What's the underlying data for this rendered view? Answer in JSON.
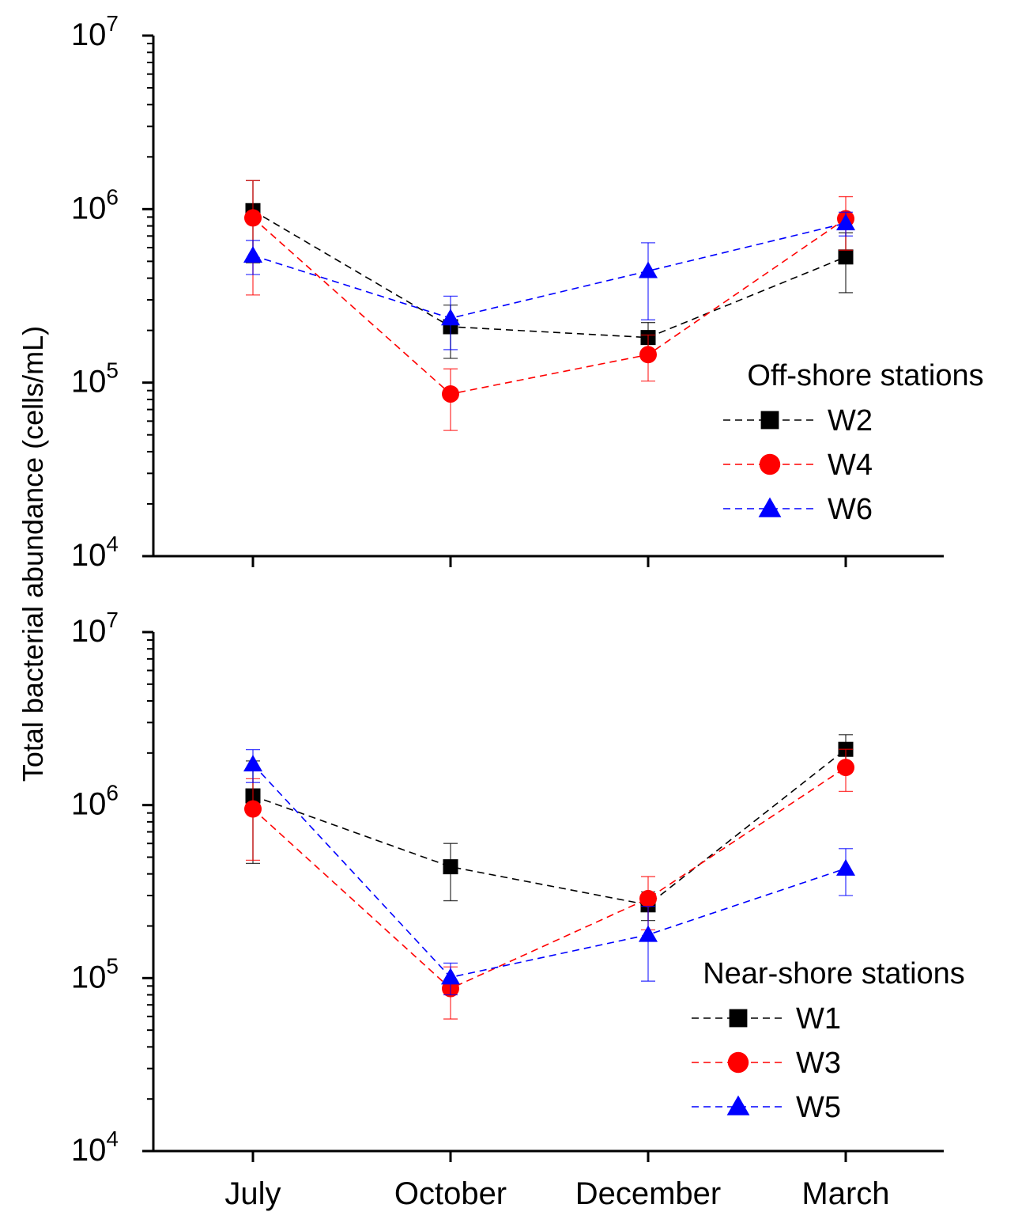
{
  "ylabel": "Total bacterial abundance (cells/mL)",
  "xlabels": [
    "July",
    "October",
    "December",
    "March"
  ],
  "chart_data": [
    {
      "type": "line",
      "yscale": "log",
      "ylim": [
        10000,
        10000000
      ],
      "ytick_exponents": [
        "4",
        "5",
        "6",
        "7"
      ],
      "categories": [
        "July",
        "October",
        "December",
        "March"
      ],
      "legend_title": "Off-shore stations",
      "series": [
        {
          "name": "W2",
          "color": "#000000",
          "marker": "square",
          "values": [
            980000,
            210000,
            182000,
            530000
          ],
          "err_low": [
            490000,
            138000,
            142000,
            330000
          ],
          "err_high": [
            1460000,
            280000,
            222000,
            730000
          ]
        },
        {
          "name": "W4",
          "color": "#ff0000",
          "marker": "circle",
          "values": [
            890000,
            86000,
            145000,
            880000
          ],
          "err_low": [
            320000,
            53000,
            102000,
            580000
          ],
          "err_high": [
            1460000,
            120000,
            188000,
            1180000
          ]
        },
        {
          "name": "W6",
          "color": "#0000ff",
          "marker": "triangle",
          "values": [
            540000,
            235000,
            440000,
            830000
          ],
          "err_low": [
            420000,
            155000,
            230000,
            700000
          ],
          "err_high": [
            660000,
            315000,
            640000,
            960000
          ]
        }
      ]
    },
    {
      "type": "line",
      "yscale": "log",
      "ylim": [
        10000,
        10000000
      ],
      "ytick_exponents": [
        "4",
        "5",
        "6",
        "7"
      ],
      "categories": [
        "July",
        "October",
        "December",
        "March"
      ],
      "legend_title": "Near-shore stations",
      "series": [
        {
          "name": "W1",
          "color": "#000000",
          "marker": "square",
          "values": [
            1130000,
            440000,
            265000,
            2100000
          ],
          "err_low": [
            460000,
            280000,
            215000,
            1650000
          ],
          "err_high": [
            1800000,
            600000,
            315000,
            2550000
          ]
        },
        {
          "name": "W3",
          "color": "#ff0000",
          "marker": "circle",
          "values": [
            950000,
            87000,
            288000,
            1650000
          ],
          "err_low": [
            480000,
            58000,
            190000,
            1200000
          ],
          "err_high": [
            1420000,
            116000,
            386000,
            2100000
          ]
        },
        {
          "name": "W5",
          "color": "#0000ff",
          "marker": "triangle",
          "values": [
            1720000,
            101000,
            178000,
            430000
          ],
          "err_low": [
            1350000,
            80000,
            96000,
            300000
          ],
          "err_high": [
            2090000,
            122000,
            260000,
            560000
          ]
        }
      ]
    }
  ]
}
